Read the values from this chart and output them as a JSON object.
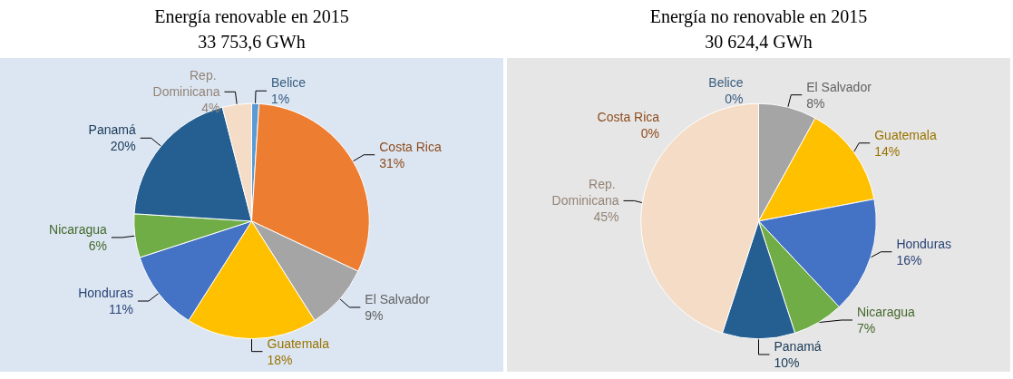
{
  "chart_data": [
    {
      "type": "pie",
      "title": "Energía renovable en 2015",
      "subtitle": "33 753,6 GWh",
      "categories": [
        "Belice",
        "Costa Rica",
        "El Salvador",
        "Guatemala",
        "Honduras",
        "Nicaragua",
        "Panamá",
        "Rep. Dominicana"
      ],
      "values": [
        1,
        31,
        9,
        18,
        11,
        6,
        20,
        4
      ],
      "value_labels": [
        "1%",
        "31%",
        "9%",
        "18%",
        "11%",
        "6%",
        "20%",
        "4%"
      ],
      "colors": [
        "#5b9bd5",
        "#ed7d31",
        "#a5a5a5",
        "#ffc000",
        "#4472c4",
        "#70ad47",
        "#255e91",
        "#f4dcc6"
      ]
    },
    {
      "type": "pie",
      "title": "Energía no renovable en 2015",
      "subtitle": "30 624,4 GWh",
      "categories": [
        "Belice",
        "Costa Rica",
        "El Salvador",
        "Guatemala",
        "Honduras",
        "Nicaragua",
        "Panamá",
        "Rep. Dominicana"
      ],
      "values": [
        0,
        0,
        8,
        14,
        16,
        7,
        10,
        45
      ],
      "value_labels": [
        "0%",
        "0%",
        "8%",
        "14%",
        "16%",
        "7%",
        "10%",
        "45%"
      ],
      "colors": [
        "#5b9bd5",
        "#ed7d31",
        "#a5a5a5",
        "#ffc000",
        "#4472c4",
        "#70ad47",
        "#255e91",
        "#f4dcc6"
      ]
    }
  ]
}
